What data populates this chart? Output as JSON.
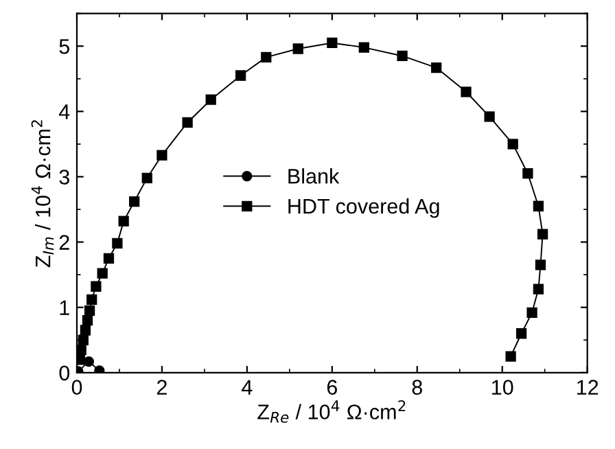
{
  "chart_data": {
    "type": "line",
    "xlabel": "Z$_{Re}$ / 10$^{4}$ Ω·cm$^{2}$",
    "ylabel": "Z$_{Im}$ / 10$^{4}$ Ω·cm$^{2}$",
    "xlim": [
      0,
      12
    ],
    "ylim": [
      0,
      5.5
    ],
    "xticks": [
      0,
      2,
      4,
      6,
      8,
      10,
      12
    ],
    "yticks": [
      0,
      1,
      2,
      3,
      4,
      5
    ],
    "grid": false,
    "legend": "center",
    "series": [
      {
        "name": "Blank",
        "color": "#000000",
        "marker": "circle",
        "x": [
          0.03,
          0.28,
          0.53
        ],
        "values": [
          0.02,
          0.17,
          0.03
        ]
      },
      {
        "name": "HDT covered Ag",
        "color": "#000000",
        "marker": "square",
        "x": [
          0.07,
          0.1,
          0.15,
          0.2,
          0.25,
          0.3,
          0.35,
          0.45,
          0.6,
          0.75,
          0.95,
          1.1,
          1.35,
          1.65,
          2.0,
          2.6,
          3.15,
          3.85,
          4.45,
          5.2,
          6.0,
          6.75,
          7.65,
          8.45,
          9.15,
          9.7,
          10.25,
          10.6,
          10.85,
          10.95,
          10.9,
          10.85,
          10.7,
          10.45,
          10.2
        ],
        "values": [
          0.2,
          0.35,
          0.5,
          0.65,
          0.8,
          0.95,
          1.12,
          1.32,
          1.52,
          1.75,
          1.98,
          2.32,
          2.62,
          2.98,
          3.33,
          3.83,
          4.18,
          4.55,
          4.83,
          4.96,
          5.05,
          4.98,
          4.85,
          4.67,
          4.3,
          3.92,
          3.5,
          3.05,
          2.55,
          2.12,
          1.65,
          1.28,
          0.92,
          0.6,
          0.25
        ]
      }
    ]
  }
}
